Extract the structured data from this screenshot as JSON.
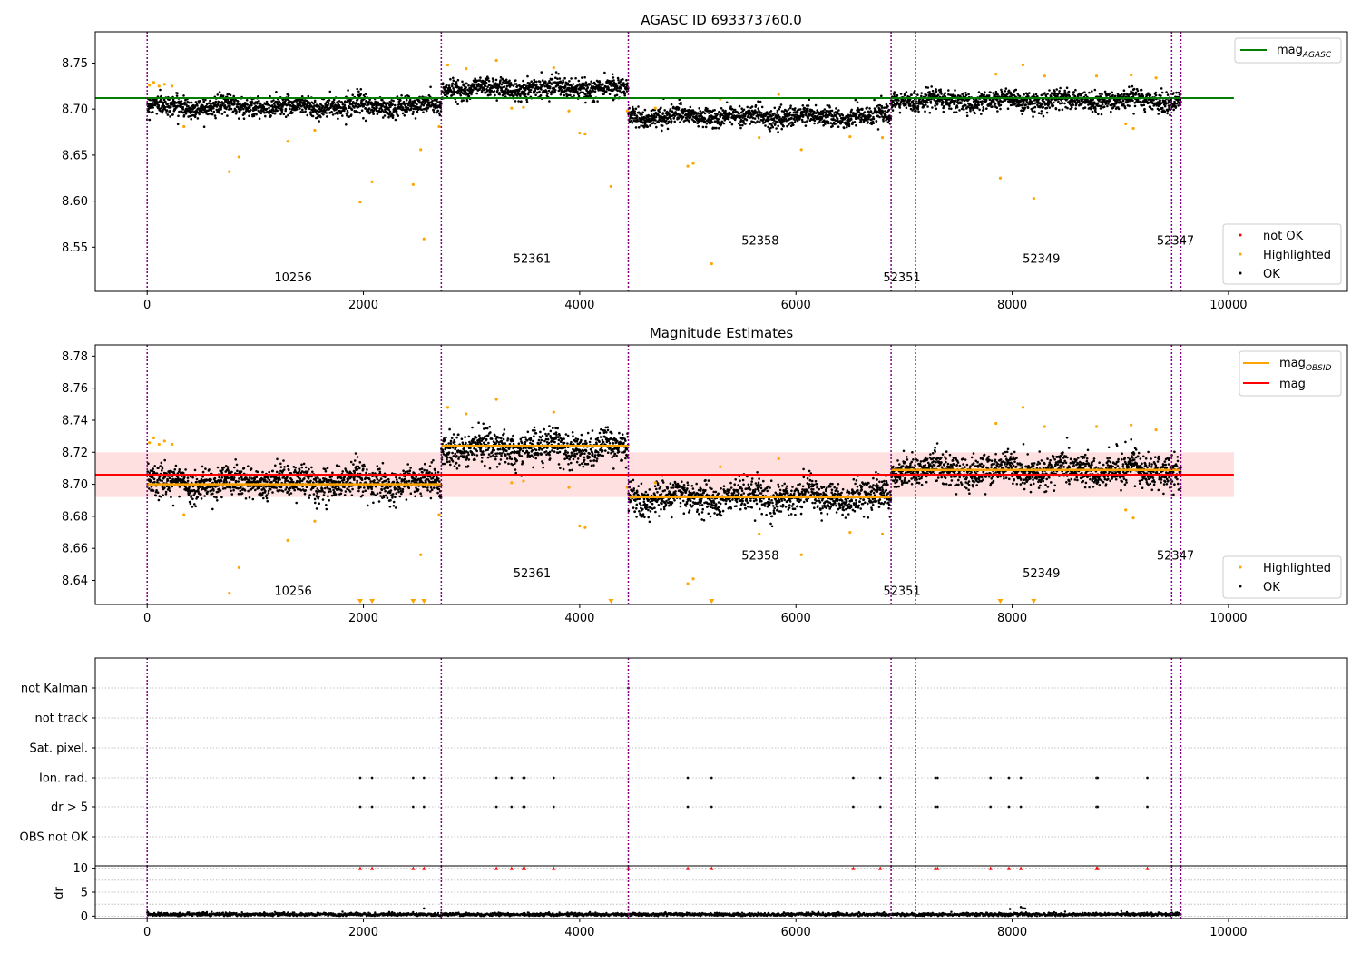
{
  "colors": {
    "ok": "#000000",
    "highlighted": "#ffa500",
    "not_ok": "#ff0000",
    "agasc_line": "#008000",
    "obsid_line": "#ffa500",
    "mag_line": "#ff0000",
    "mag_band": "#ffe0e0",
    "obs_boundary": "#800080",
    "grid": "#b0b0b0"
  },
  "chart_data": [
    {
      "type": "scatter",
      "title": "AGASC ID 693373760.0",
      "xlim": [
        -480,
        11100
      ],
      "ylim": [
        8.502,
        8.784
      ],
      "xticks": [
        0,
        2000,
        4000,
        6000,
        8000,
        10000
      ],
      "yticks": [
        8.55,
        8.6,
        8.65,
        8.7,
        8.75
      ],
      "ytick_labels": [
        "8.55",
        "8.60",
        "8.65",
        "8.70",
        "8.75"
      ],
      "obs_boundaries": [
        0,
        2720,
        4450,
        6880,
        7105,
        9475,
        9560
      ],
      "obsid_annotations": [
        {
          "label": "10256",
          "x": 1350,
          "y": 8.513
        },
        {
          "label": "52361",
          "x": 3560,
          "y": 8.533
        },
        {
          "label": "52358",
          "x": 5670,
          "y": 8.553
        },
        {
          "label": "52351",
          "x": 6980,
          "y": 8.513
        },
        {
          "label": "52349",
          "x": 8270,
          "y": 8.533
        },
        {
          "label": "52347",
          "x": 9510,
          "y": 8.553
        }
      ],
      "series": [
        {
          "name": "OK",
          "segments": [
            {
              "x0": 0,
              "x1": 2720,
              "mean": 8.703,
              "sd": 0.007
            },
            {
              "x0": 2720,
              "x1": 4450,
              "mean": 8.723,
              "sd": 0.007
            },
            {
              "x0": 4450,
              "x1": 6880,
              "mean": 8.692,
              "sd": 0.007
            },
            {
              "x0": 6880,
              "x1": 9560,
              "mean": 8.709,
              "sd": 0.007
            }
          ]
        },
        {
          "name": "Highlighted",
          "points": [
            [
              20,
              8.726
            ],
            [
              60,
              8.729
            ],
            [
              110,
              8.725
            ],
            [
              160,
              8.727
            ],
            [
              230,
              8.725
            ],
            [
              340,
              8.681
            ],
            [
              760,
              8.632
            ],
            [
              850,
              8.648
            ],
            [
              1300,
              8.665
            ],
            [
              1550,
              8.677
            ],
            [
              1970,
              8.599
            ],
            [
              2080,
              8.621
            ],
            [
              2460,
              8.618
            ],
            [
              2530,
              8.656
            ],
            [
              2560,
              8.559
            ],
            [
              2700,
              8.681
            ],
            [
              2780,
              8.748
            ],
            [
              2950,
              8.744
            ],
            [
              3230,
              8.753
            ],
            [
              3370,
              8.701
            ],
            [
              3480,
              8.702
            ],
            [
              3760,
              8.745
            ],
            [
              3900,
              8.698
            ],
            [
              4000,
              8.674
            ],
            [
              4050,
              8.673
            ],
            [
              4290,
              8.616
            ],
            [
              4440,
              8.698
            ],
            [
              4700,
              8.701
            ],
            [
              5000,
              8.638
            ],
            [
              5050,
              8.641
            ],
            [
              5220,
              8.532
            ],
            [
              5300,
              8.711
            ],
            [
              5660,
              8.669
            ],
            [
              5840,
              8.716
            ],
            [
              6050,
              8.656
            ],
            [
              6500,
              8.67
            ],
            [
              6800,
              8.669
            ],
            [
              7850,
              8.738
            ],
            [
              7890,
              8.625
            ],
            [
              8100,
              8.748
            ],
            [
              8200,
              8.603
            ],
            [
              8300,
              8.736
            ],
            [
              8780,
              8.736
            ],
            [
              9050,
              8.684
            ],
            [
              9100,
              8.737
            ],
            [
              9120,
              8.679
            ],
            [
              9330,
              8.734
            ]
          ]
        },
        {
          "name": "not OK",
          "points": []
        },
        {
          "name": "mag_{AGASC}",
          "y": 8.712,
          "x": [
            -480,
            10050
          ]
        }
      ],
      "legend_upper": [
        "mag_{AGASC}"
      ],
      "legend_lower": [
        "not OK",
        "Highlighted",
        "OK"
      ]
    },
    {
      "type": "scatter",
      "title": "Magnitude Estimates",
      "xlim": [
        -480,
        11100
      ],
      "ylim": [
        8.625,
        8.787
      ],
      "xticks": [
        0,
        2000,
        4000,
        6000,
        8000,
        10000
      ],
      "yticks": [
        8.64,
        8.66,
        8.68,
        8.7,
        8.72,
        8.74,
        8.76,
        8.78
      ],
      "ytick_labels": [
        "8.64",
        "8.66",
        "8.68",
        "8.70",
        "8.72",
        "8.74",
        "8.76",
        "8.78"
      ],
      "obs_boundaries": [
        0,
        2720,
        4450,
        6880,
        7105,
        9475,
        9560
      ],
      "obsid_annotations": [
        {
          "label": "10256",
          "x": 1350,
          "y": 8.631
        },
        {
          "label": "52361",
          "x": 3560,
          "y": 8.642
        },
        {
          "label": "52358",
          "x": 5670,
          "y": 8.653
        },
        {
          "label": "52351",
          "x": 6980,
          "y": 8.631
        },
        {
          "label": "52349",
          "x": 8270,
          "y": 8.642
        },
        {
          "label": "52347",
          "x": 9510,
          "y": 8.653
        }
      ],
      "mag": 8.706,
      "mag_band": [
        8.692,
        8.72
      ],
      "mag_obsid": [
        {
          "x0": 0,
          "x1": 2720,
          "y": 8.7
        },
        {
          "x0": 2720,
          "x1": 4450,
          "y": 8.724
        },
        {
          "x0": 4450,
          "x1": 6880,
          "y": 8.692
        },
        {
          "x0": 6880,
          "x1": 9560,
          "y": 8.709
        }
      ],
      "series": [
        {
          "name": "OK",
          "segments": [
            {
              "x0": 0,
              "x1": 2720,
              "mean": 8.701,
              "sd": 0.0065
            },
            {
              "x0": 2720,
              "x1": 4450,
              "mean": 8.723,
              "sd": 0.0065
            },
            {
              "x0": 4450,
              "x1": 6880,
              "mean": 8.692,
              "sd": 0.0065
            },
            {
              "x0": 6880,
              "x1": 9560,
              "mean": 8.709,
              "sd": 0.0065
            }
          ]
        },
        {
          "name": "Highlighted",
          "points": [
            [
              20,
              8.726
            ],
            [
              60,
              8.729
            ],
            [
              110,
              8.725
            ],
            [
              160,
              8.727
            ],
            [
              230,
              8.725
            ],
            [
              340,
              8.681
            ],
            [
              760,
              8.632
            ],
            [
              850,
              8.648
            ],
            [
              1300,
              8.665
            ],
            [
              1550,
              8.677
            ],
            [
              2530,
              8.656
            ],
            [
              2700,
              8.681
            ],
            [
              2780,
              8.748
            ],
            [
              2950,
              8.744
            ],
            [
              3230,
              8.753
            ],
            [
              3370,
              8.701
            ],
            [
              3480,
              8.702
            ],
            [
              3760,
              8.745
            ],
            [
              3900,
              8.698
            ],
            [
              4000,
              8.674
            ],
            [
              4050,
              8.673
            ],
            [
              4440,
              8.698
            ],
            [
              4700,
              8.701
            ],
            [
              5000,
              8.638
            ],
            [
              5050,
              8.641
            ],
            [
              5300,
              8.711
            ],
            [
              5660,
              8.669
            ],
            [
              5840,
              8.716
            ],
            [
              6050,
              8.656
            ],
            [
              6500,
              8.67
            ],
            [
              6800,
              8.669
            ],
            [
              7850,
              8.738
            ],
            [
              8100,
              8.748
            ],
            [
              8300,
              8.736
            ],
            [
              8780,
              8.736
            ],
            [
              9050,
              8.684
            ],
            [
              9100,
              8.737
            ],
            [
              9120,
              8.679
            ],
            [
              9330,
              8.734
            ]
          ]
        },
        {
          "name": "Highlighted below range",
          "x": [
            1970,
            2080,
            2460,
            2560,
            4290,
            5220,
            7890,
            8200
          ]
        }
      ],
      "legend_upper": [
        "mag_{OBSID}",
        "mag"
      ],
      "legend_lower": [
        "Highlighted",
        "OK"
      ]
    },
    {
      "type": "scatter",
      "title": "",
      "xlim": [
        -480,
        11100
      ],
      "flag_rows": [
        "not Kalman",
        "not track",
        "Sat. pixel.",
        "Ion. rad.",
        "dr > 5",
        "OBS not OK"
      ],
      "flag_points": {
        "not Kalman": [
          4450
        ],
        "not track": [],
        "Sat. pixel.": [],
        "Ion. rad.": [
          1970,
          2080,
          2460,
          2560,
          3230,
          3370,
          3480,
          3490,
          3760,
          5000,
          5220,
          6530,
          6780,
          7290,
          7310,
          7800,
          7970,
          8080,
          8780,
          8790,
          9250
        ],
        "dr > 5": [
          1970,
          2080,
          2460,
          2560,
          3230,
          3370,
          3480,
          3490,
          3760,
          5000,
          5220,
          6530,
          6780,
          7290,
          7310,
          7800,
          7970,
          8080,
          8780,
          8790,
          9250
        ],
        "OBS not OK": []
      },
      "obs_boundaries": [
        0,
        2720,
        4450,
        6880,
        7105,
        9475,
        9560
      ]
    },
    {
      "type": "scatter",
      "title": "",
      "ylabel": "dr",
      "xlim": [
        -480,
        11100
      ],
      "ylim": [
        -0.5,
        10.5
      ],
      "xticks": [
        0,
        2000,
        4000,
        6000,
        8000,
        10000
      ],
      "yticks": [
        0,
        5,
        10
      ],
      "dr_baseline_mean": 0.35,
      "dr_outliers": [
        [
          2560,
          1.6
        ],
        [
          7980,
          1.5
        ],
        [
          8080,
          1.9
        ],
        [
          8100,
          1.7
        ],
        [
          8120,
          1.6
        ]
      ],
      "dr_clipped_x": [
        1970,
        2080,
        2460,
        2560,
        3230,
        3370,
        3480,
        3490,
        3760,
        4450,
        5000,
        5220,
        6530,
        6780,
        7290,
        7310,
        7800,
        7970,
        8080,
        8780,
        8790,
        9250
      ],
      "dr_clip_value": 10,
      "obs_boundaries": [
        0,
        2720,
        4450,
        6880,
        7105,
        9475,
        9560
      ]
    }
  ]
}
